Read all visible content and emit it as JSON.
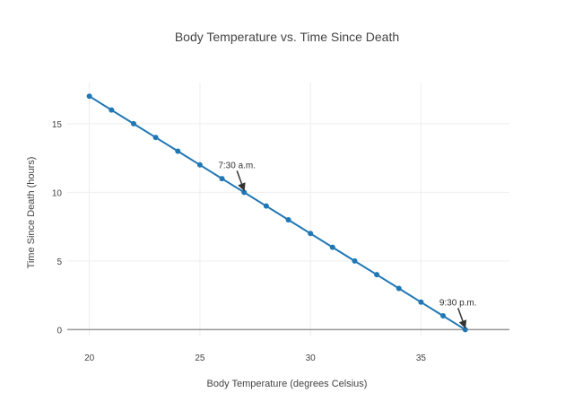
{
  "chart_data": {
    "type": "scatter",
    "title": "Body Temperature vs. Time Since Death",
    "xlabel": "Body Temperature (degrees Celsius)",
    "ylabel": "Time Since Death (hours)",
    "xlim": [
      19,
      39
    ],
    "ylim": [
      -0.5,
      18
    ],
    "x_ticks": [
      20,
      25,
      30,
      35
    ],
    "y_ticks": [
      0,
      5,
      10,
      15
    ],
    "grid": true,
    "series": [
      {
        "x": [
          20,
          21,
          22,
          23,
          24,
          25,
          26,
          27,
          28,
          29,
          30,
          31,
          32,
          33,
          34,
          35,
          36,
          37
        ],
        "y": [
          17,
          16,
          15,
          14,
          13,
          12,
          11,
          10,
          9,
          8,
          7,
          6,
          5,
          4,
          3,
          2,
          1,
          0
        ],
        "color": "#1f77b4",
        "mode": "lines+markers"
      }
    ],
    "annotations": [
      {
        "text": "7:30 a.m.",
        "x": 27,
        "y": 10
      },
      {
        "text": "9:30 p.m.",
        "x": 37,
        "y": 0
      }
    ]
  }
}
